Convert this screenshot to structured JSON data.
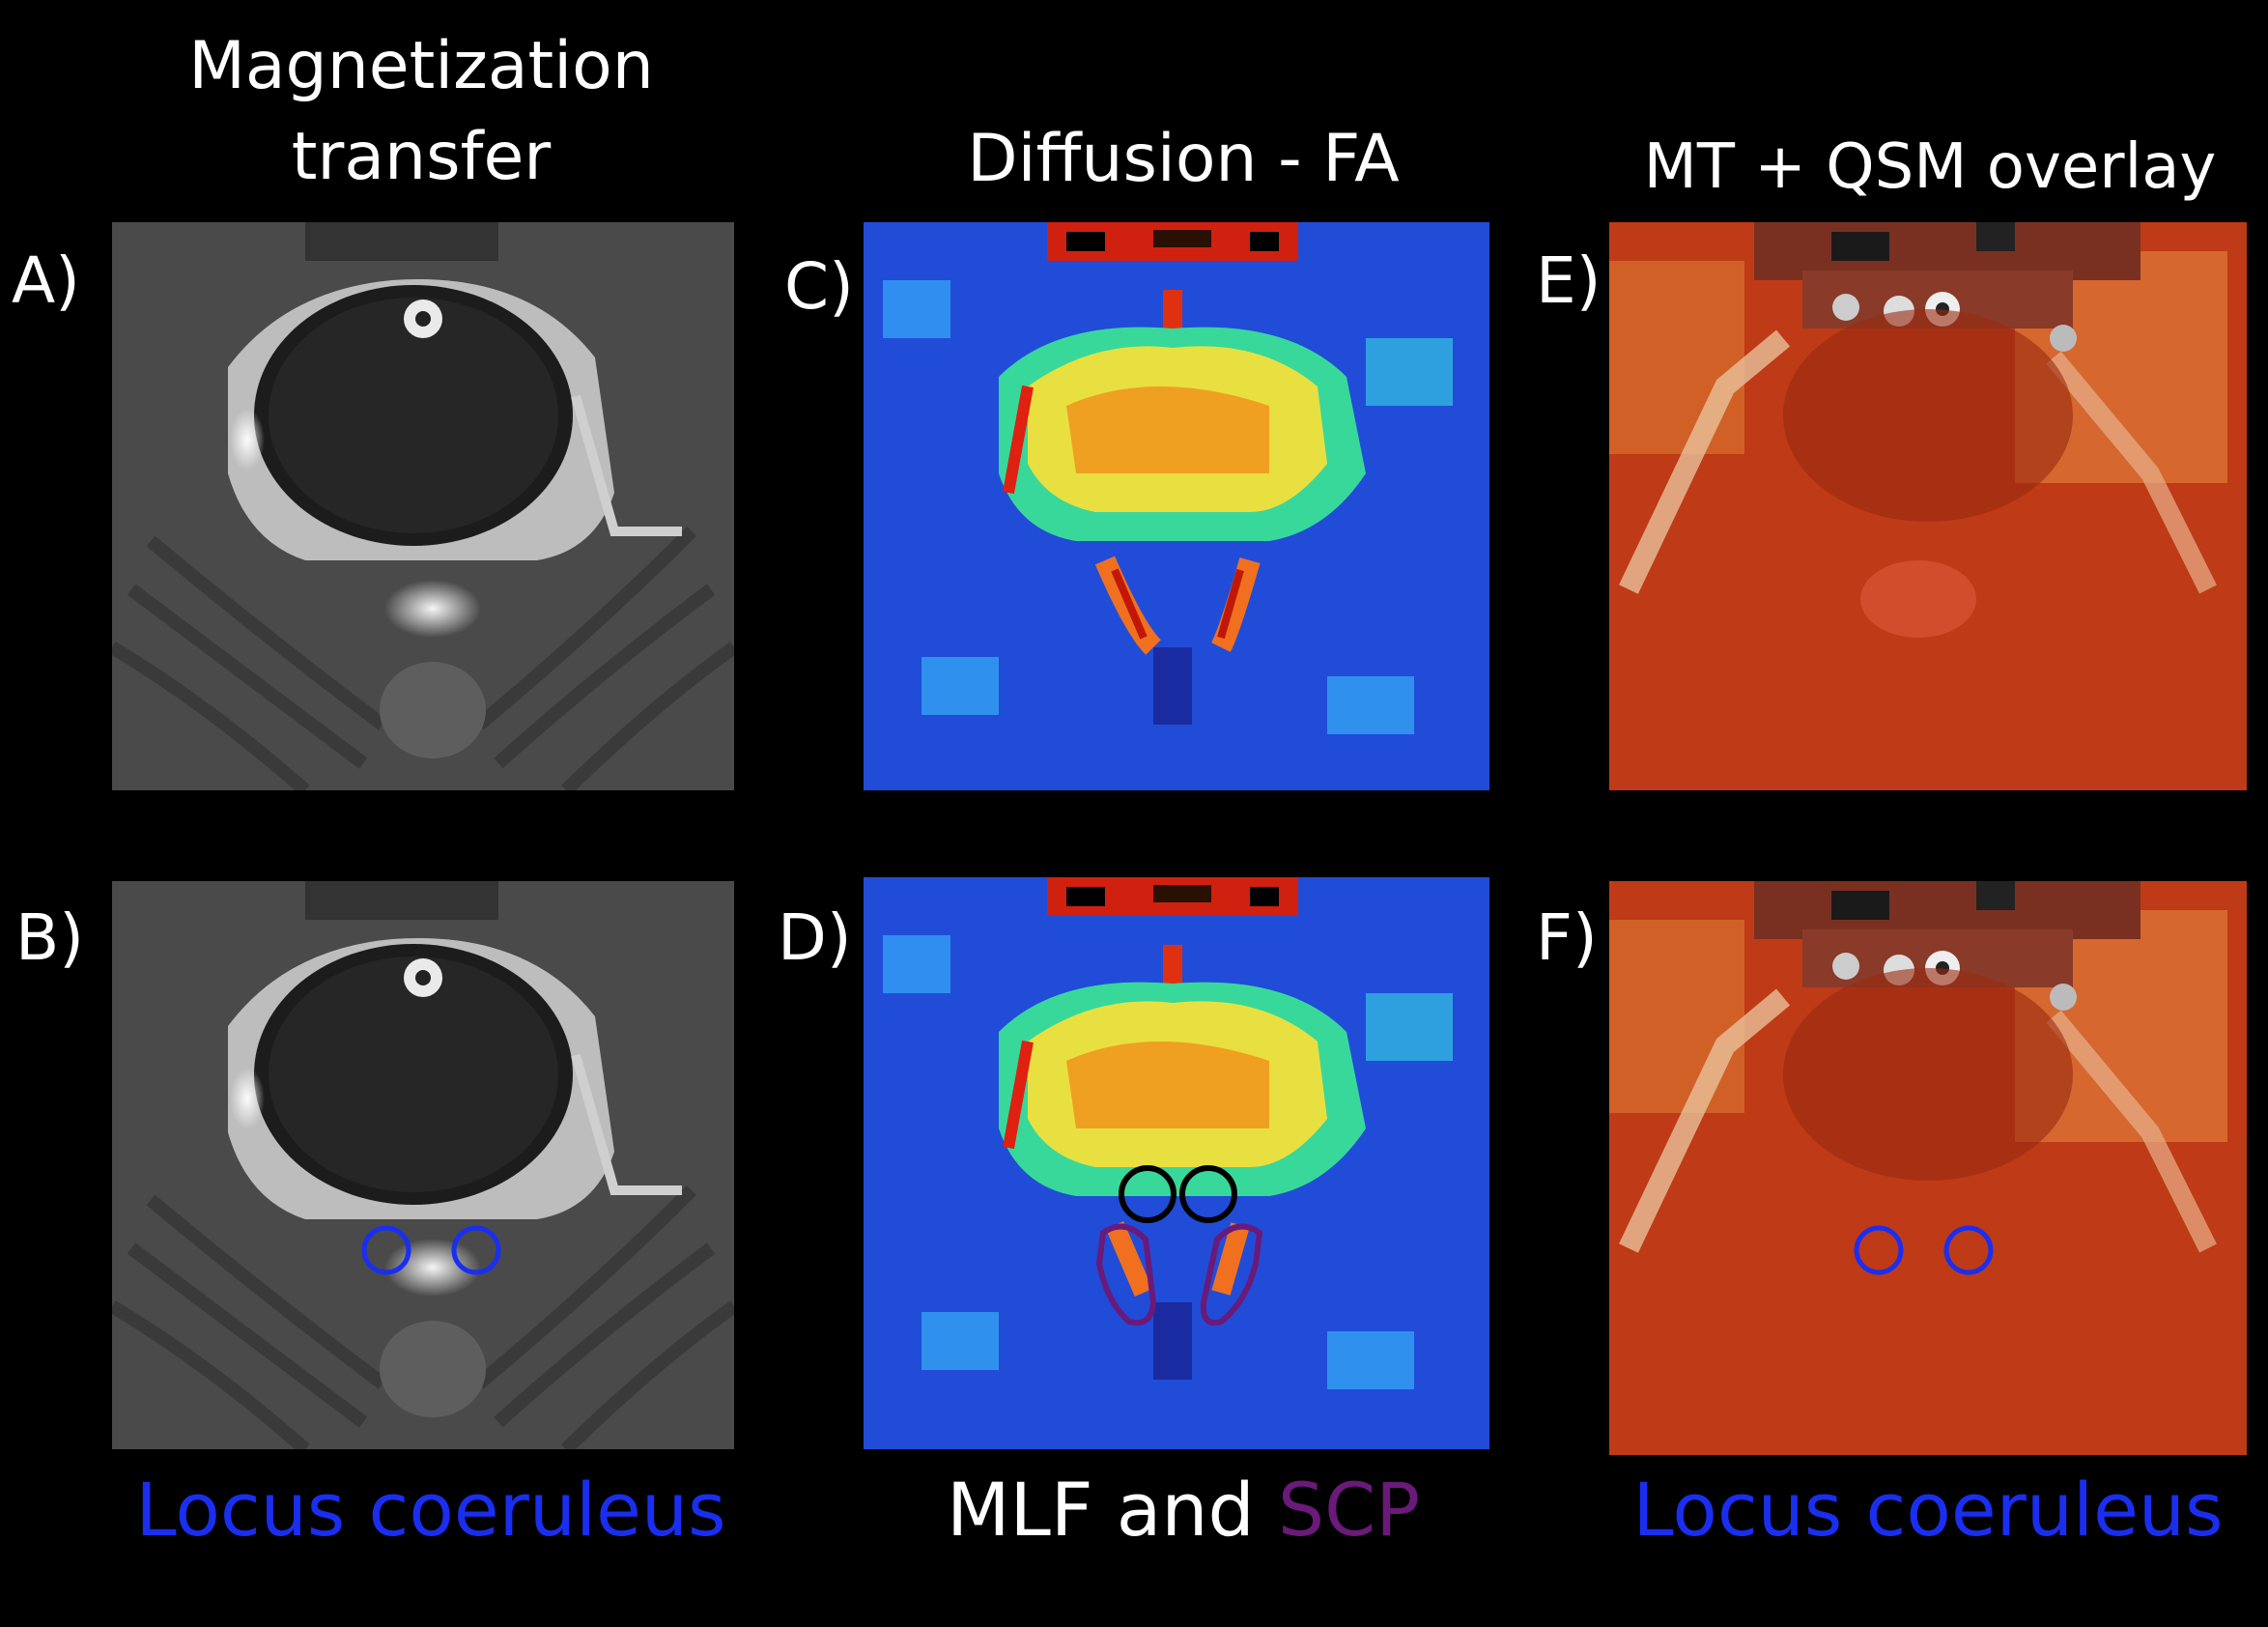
{
  "columns": [
    {
      "title_line1": "Magnetization",
      "title_line2": "transfer",
      "top_label": "A)",
      "bottom_label": "B)"
    },
    {
      "title": "Diffusion - FA",
      "top_label": "C)",
      "bottom_label": "D)"
    },
    {
      "title": "MT + QSM overlay",
      "top_label": "E)",
      "bottom_label": "F)"
    }
  ],
  "captions": {
    "left": "Locus coeruleus",
    "middle_part1": "MLF and",
    "middle_part2": "SCP",
    "right": "Locus coeruleus"
  },
  "colors": {
    "background": "#000000",
    "locus_coeruleus": "#1a2ef0",
    "scp": "#6a1a78",
    "mlf": "#000000",
    "text": "#ffffff"
  }
}
